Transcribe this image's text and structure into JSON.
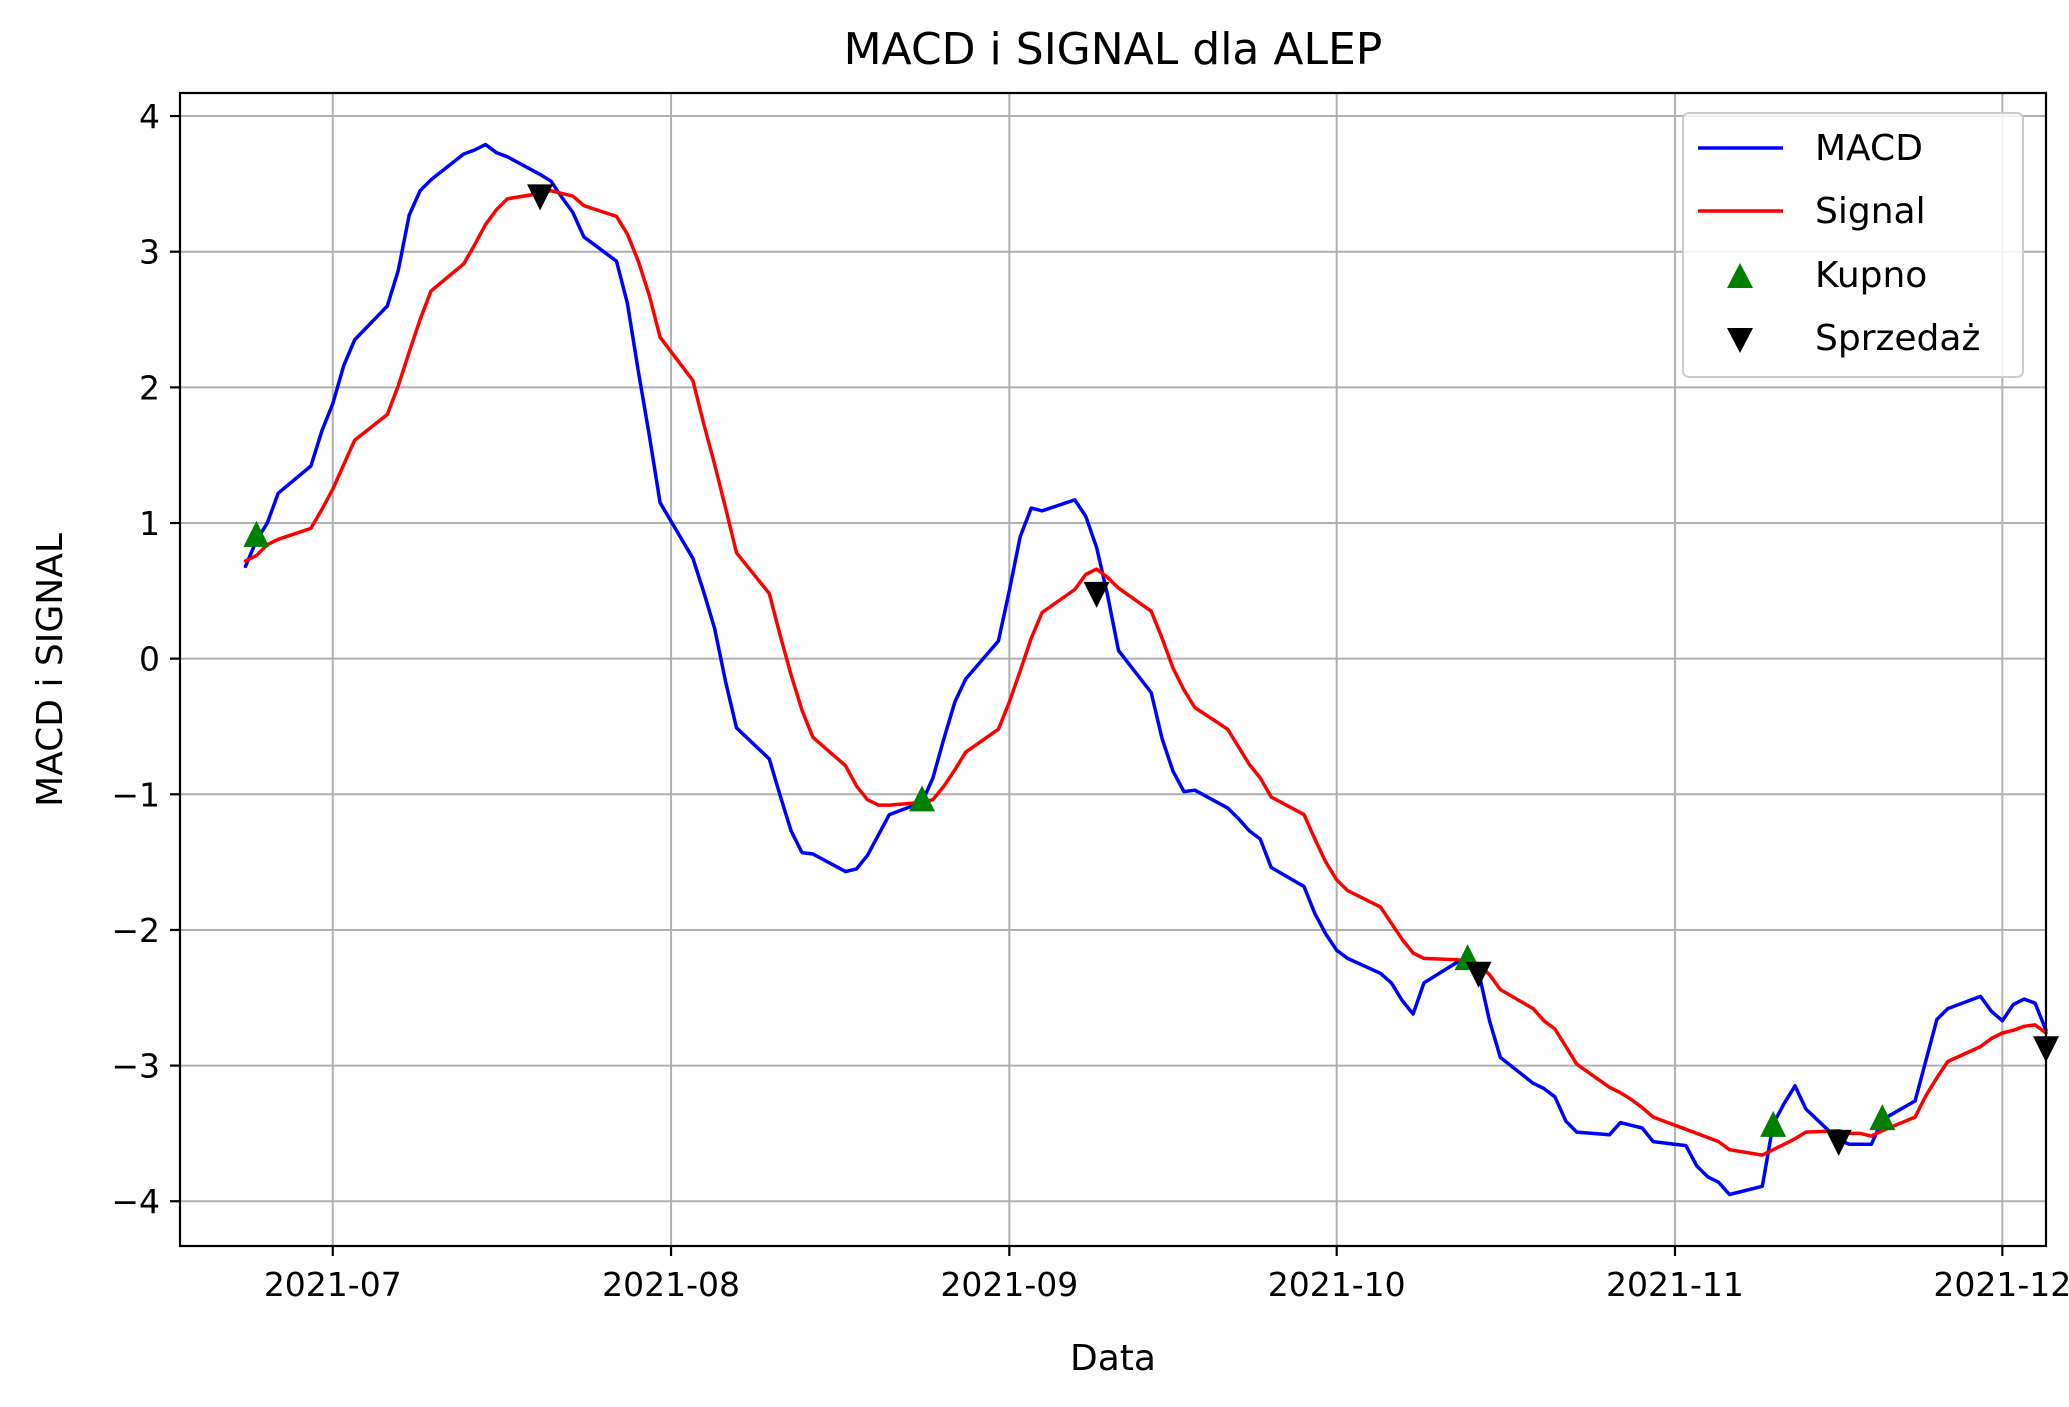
{
  "chart_data": {
    "type": "line",
    "title": "MACD i SIGNAL dla ALEP",
    "xlabel": "Data",
    "ylabel": "MACD i SIGNAL",
    "x_ticks": [
      "2021-07",
      "2021-08",
      "2021-09",
      "2021-10",
      "2021-11",
      "2021-12"
    ],
    "y_ticks": [
      "4",
      "3",
      "2",
      "1",
      "0",
      "−1",
      "−2",
      "−3",
      "−4"
    ],
    "ylim": [
      -4.33,
      4.17
    ],
    "xlim": [
      "2021-06-17",
      "2021-12-05"
    ],
    "grid": true,
    "legend_position": "top-right",
    "colors": {
      "macd": "#0000ff",
      "signal": "#ff0000",
      "buy": "#008000",
      "sell": "#000000"
    },
    "series": [
      {
        "name": "MACD",
        "style": "line",
        "color": "#0000ff",
        "points": [
          [
            "2021-06-23",
            0.68
          ],
          [
            "2021-06-24",
            0.87
          ],
          [
            "2021-06-25",
            1.0
          ],
          [
            "2021-06-26",
            1.22
          ],
          [
            "2021-06-29",
            1.42
          ],
          [
            "2021-06-30",
            1.68
          ],
          [
            "2021-07-01",
            1.88
          ],
          [
            "2021-07-02",
            2.16
          ],
          [
            "2021-07-03",
            2.35
          ],
          [
            "2021-07-06",
            2.6
          ],
          [
            "2021-07-07",
            2.86
          ],
          [
            "2021-07-08",
            3.27
          ],
          [
            "2021-07-09",
            3.45
          ],
          [
            "2021-07-10",
            3.53
          ],
          [
            "2021-07-13",
            3.72
          ],
          [
            "2021-07-14",
            3.75
          ],
          [
            "2021-07-15",
            3.79
          ],
          [
            "2021-07-16",
            3.73
          ],
          [
            "2021-07-17",
            3.7
          ],
          [
            "2021-07-20",
            3.57
          ],
          [
            "2021-07-21",
            3.52
          ],
          [
            "2021-07-22",
            3.4
          ],
          [
            "2021-07-23",
            3.29
          ],
          [
            "2021-07-24",
            3.11
          ],
          [
            "2021-07-27",
            2.93
          ],
          [
            "2021-07-28",
            2.62
          ],
          [
            "2021-07-29",
            2.12
          ],
          [
            "2021-07-30",
            1.65
          ],
          [
            "2021-07-31",
            1.15
          ],
          [
            "2021-08-03",
            0.74
          ],
          [
            "2021-08-04",
            0.49
          ],
          [
            "2021-08-05",
            0.22
          ],
          [
            "2021-08-06",
            -0.17
          ],
          [
            "2021-08-07",
            -0.51
          ],
          [
            "2021-08-10",
            -0.74
          ],
          [
            "2021-08-11",
            -1.01
          ],
          [
            "2021-08-12",
            -1.27
          ],
          [
            "2021-08-13",
            -1.43
          ],
          [
            "2021-08-14",
            -1.44
          ],
          [
            "2021-08-17",
            -1.57
          ],
          [
            "2021-08-18",
            -1.55
          ],
          [
            "2021-08-19",
            -1.45
          ],
          [
            "2021-08-20",
            -1.3
          ],
          [
            "2021-08-21",
            -1.15
          ],
          [
            "2021-08-24",
            -1.06
          ],
          [
            "2021-08-25",
            -0.88
          ],
          [
            "2021-08-26",
            -0.59
          ],
          [
            "2021-08-27",
            -0.32
          ],
          [
            "2021-08-28",
            -0.15
          ],
          [
            "2021-08-31",
            0.13
          ],
          [
            "2021-09-01",
            0.5
          ],
          [
            "2021-09-02",
            0.9
          ],
          [
            "2021-09-03",
            1.11
          ],
          [
            "2021-09-04",
            1.09
          ],
          [
            "2021-09-07",
            1.17
          ],
          [
            "2021-09-08",
            1.05
          ],
          [
            "2021-09-09",
            0.82
          ],
          [
            "2021-09-10",
            0.47
          ],
          [
            "2021-09-11",
            0.06
          ],
          [
            "2021-09-14",
            -0.25
          ],
          [
            "2021-09-15",
            -0.59
          ],
          [
            "2021-09-16",
            -0.83
          ],
          [
            "2021-09-17",
            -0.98
          ],
          [
            "2021-09-18",
            -0.97
          ],
          [
            "2021-09-21",
            -1.1
          ],
          [
            "2021-09-22",
            -1.18
          ],
          [
            "2021-09-23",
            -1.27
          ],
          [
            "2021-09-24",
            -1.33
          ],
          [
            "2021-09-25",
            -1.54
          ],
          [
            "2021-09-28",
            -1.68
          ],
          [
            "2021-09-29",
            -1.88
          ],
          [
            "2021-09-30",
            -2.03
          ],
          [
            "2021-10-01",
            -2.15
          ],
          [
            "2021-10-02",
            -2.21
          ],
          [
            "2021-10-05",
            -2.32
          ],
          [
            "2021-10-06",
            -2.39
          ],
          [
            "2021-10-07",
            -2.52
          ],
          [
            "2021-10-08",
            -2.62
          ],
          [
            "2021-10-09",
            -2.39
          ],
          [
            "2021-10-12",
            -2.24
          ],
          [
            "2021-10-13",
            -2.21
          ],
          [
            "2021-10-14",
            -2.31
          ],
          [
            "2021-10-15",
            -2.67
          ],
          [
            "2021-10-16",
            -2.94
          ],
          [
            "2021-10-19",
            -3.13
          ],
          [
            "2021-10-20",
            -3.17
          ],
          [
            "2021-10-21",
            -3.23
          ],
          [
            "2021-10-22",
            -3.41
          ],
          [
            "2021-10-23",
            -3.49
          ],
          [
            "2021-10-26",
            -3.51
          ],
          [
            "2021-10-27",
            -3.42
          ],
          [
            "2021-10-28",
            -3.44
          ],
          [
            "2021-10-29",
            -3.46
          ],
          [
            "2021-10-30",
            -3.56
          ],
          [
            "2021-11-02",
            -3.59
          ],
          [
            "2021-11-03",
            -3.74
          ],
          [
            "2021-11-04",
            -3.82
          ],
          [
            "2021-11-05",
            -3.86
          ],
          [
            "2021-11-06",
            -3.95
          ],
          [
            "2021-11-09",
            -3.89
          ],
          [
            "2021-11-10",
            -3.43
          ],
          [
            "2021-11-11",
            -3.28
          ],
          [
            "2021-11-12",
            -3.15
          ],
          [
            "2021-11-13",
            -3.32
          ],
          [
            "2021-11-16",
            -3.55
          ],
          [
            "2021-11-17",
            -3.58
          ],
          [
            "2021-11-18",
            -3.58
          ],
          [
            "2021-11-19",
            -3.58
          ],
          [
            "2021-11-20",
            -3.4
          ],
          [
            "2021-11-23",
            -3.26
          ],
          [
            "2021-11-24",
            -2.96
          ],
          [
            "2021-11-25",
            -2.66
          ],
          [
            "2021-11-26",
            -2.58
          ],
          [
            "2021-11-29",
            -2.49
          ],
          [
            "2021-11-30",
            -2.6
          ],
          [
            "2021-12-01",
            -2.67
          ],
          [
            "2021-12-02",
            -2.55
          ],
          [
            "2021-12-03",
            -2.51
          ],
          [
            "2021-12-04",
            -2.54
          ],
          [
            "2021-12-05",
            -2.74
          ]
        ]
      },
      {
        "name": "Signal",
        "style": "line",
        "color": "#ff0000",
        "points": [
          [
            "2021-06-23",
            0.72
          ],
          [
            "2021-06-24",
            0.76
          ],
          [
            "2021-06-25",
            0.84
          ],
          [
            "2021-06-26",
            0.88
          ],
          [
            "2021-06-29",
            0.96
          ],
          [
            "2021-06-30",
            1.1
          ],
          [
            "2021-07-01",
            1.25
          ],
          [
            "2021-07-02",
            1.43
          ],
          [
            "2021-07-03",
            1.61
          ],
          [
            "2021-07-06",
            1.8
          ],
          [
            "2021-07-07",
            2.01
          ],
          [
            "2021-07-08",
            2.26
          ],
          [
            "2021-07-09",
            2.5
          ],
          [
            "2021-07-10",
            2.71
          ],
          [
            "2021-07-13",
            2.91
          ],
          [
            "2021-07-14",
            3.05
          ],
          [
            "2021-07-15",
            3.2
          ],
          [
            "2021-07-16",
            3.31
          ],
          [
            "2021-07-17",
            3.39
          ],
          [
            "2021-07-20",
            3.43
          ],
          [
            "2021-07-21",
            3.45
          ],
          [
            "2021-07-22",
            3.43
          ],
          [
            "2021-07-23",
            3.41
          ],
          [
            "2021-07-24",
            3.34
          ],
          [
            "2021-07-27",
            3.26
          ],
          [
            "2021-07-28",
            3.13
          ],
          [
            "2021-07-29",
            2.93
          ],
          [
            "2021-07-30",
            2.68
          ],
          [
            "2021-07-31",
            2.37
          ],
          [
            "2021-08-03",
            2.05
          ],
          [
            "2021-08-04",
            1.73
          ],
          [
            "2021-08-05",
            1.43
          ],
          [
            "2021-08-06",
            1.11
          ],
          [
            "2021-08-07",
            0.78
          ],
          [
            "2021-08-10",
            0.48
          ],
          [
            "2021-08-11",
            0.17
          ],
          [
            "2021-08-12",
            -0.12
          ],
          [
            "2021-08-13",
            -0.38
          ],
          [
            "2021-08-14",
            -0.58
          ],
          [
            "2021-08-17",
            -0.79
          ],
          [
            "2021-08-18",
            -0.94
          ],
          [
            "2021-08-19",
            -1.04
          ],
          [
            "2021-08-20",
            -1.08
          ],
          [
            "2021-08-21",
            -1.08
          ],
          [
            "2021-08-24",
            -1.06
          ],
          [
            "2021-08-25",
            -1.04
          ],
          [
            "2021-08-26",
            -0.94
          ],
          [
            "2021-08-27",
            -0.82
          ],
          [
            "2021-08-28",
            -0.69
          ],
          [
            "2021-08-31",
            -0.52
          ],
          [
            "2021-09-01",
            -0.32
          ],
          [
            "2021-09-02",
            -0.09
          ],
          [
            "2021-09-03",
            0.15
          ],
          [
            "2021-09-04",
            0.34
          ],
          [
            "2021-09-07",
            0.51
          ],
          [
            "2021-09-08",
            0.62
          ],
          [
            "2021-09-09",
            0.66
          ],
          [
            "2021-09-10",
            0.6
          ],
          [
            "2021-09-11",
            0.52
          ],
          [
            "2021-09-14",
            0.35
          ],
          [
            "2021-09-15",
            0.15
          ],
          [
            "2021-09-16",
            -0.07
          ],
          [
            "2021-09-17",
            -0.23
          ],
          [
            "2021-09-18",
            -0.36
          ],
          [
            "2021-09-21",
            -0.52
          ],
          [
            "2021-09-22",
            -0.65
          ],
          [
            "2021-09-23",
            -0.78
          ],
          [
            "2021-09-24",
            -0.88
          ],
          [
            "2021-09-25",
            -1.02
          ],
          [
            "2021-09-28",
            -1.15
          ],
          [
            "2021-09-29",
            -1.33
          ],
          [
            "2021-09-30",
            -1.5
          ],
          [
            "2021-10-01",
            -1.63
          ],
          [
            "2021-10-02",
            -1.71
          ],
          [
            "2021-10-05",
            -1.83
          ],
          [
            "2021-10-06",
            -1.95
          ],
          [
            "2021-10-07",
            -2.07
          ],
          [
            "2021-10-08",
            -2.17
          ],
          [
            "2021-10-09",
            -2.21
          ],
          [
            "2021-10-12",
            -2.22
          ],
          [
            "2021-10-13",
            -2.23
          ],
          [
            "2021-10-14",
            -2.25
          ],
          [
            "2021-10-15",
            -2.33
          ],
          [
            "2021-10-16",
            -2.44
          ],
          [
            "2021-10-19",
            -2.58
          ],
          [
            "2021-10-20",
            -2.67
          ],
          [
            "2021-10-21",
            -2.73
          ],
          [
            "2021-10-22",
            -2.86
          ],
          [
            "2021-10-23",
            -2.99
          ],
          [
            "2021-10-26",
            -3.16
          ],
          [
            "2021-10-27",
            -3.2
          ],
          [
            "2021-10-28",
            -3.25
          ],
          [
            "2021-10-29",
            -3.31
          ],
          [
            "2021-10-30",
            -3.38
          ],
          [
            "2021-11-02",
            -3.47
          ],
          [
            "2021-11-03",
            -3.5
          ],
          [
            "2021-11-04",
            -3.53
          ],
          [
            "2021-11-05",
            -3.56
          ],
          [
            "2021-11-06",
            -3.62
          ],
          [
            "2021-11-09",
            -3.66
          ],
          [
            "2021-11-10",
            -3.62
          ],
          [
            "2021-11-11",
            -3.58
          ],
          [
            "2021-11-12",
            -3.54
          ],
          [
            "2021-11-13",
            -3.49
          ],
          [
            "2021-11-16",
            -3.48
          ],
          [
            "2021-11-17",
            -3.5
          ],
          [
            "2021-11-18",
            -3.5
          ],
          [
            "2021-11-19",
            -3.52
          ],
          [
            "2021-11-20",
            -3.48
          ],
          [
            "2021-11-23",
            -3.38
          ],
          [
            "2021-11-24",
            -3.22
          ],
          [
            "2021-11-25",
            -3.09
          ],
          [
            "2021-11-26",
            -2.97
          ],
          [
            "2021-11-29",
            -2.86
          ],
          [
            "2021-11-30",
            -2.8
          ],
          [
            "2021-12-01",
            -2.76
          ],
          [
            "2021-12-02",
            -2.74
          ],
          [
            "2021-12-03",
            -2.71
          ],
          [
            "2021-12-04",
            -2.7
          ],
          [
            "2021-12-05",
            -2.76
          ]
        ]
      },
      {
        "name": "Kupno",
        "style": "marker-up",
        "color": "#008000",
        "points": [
          [
            "2021-06-24",
            0.92
          ],
          [
            "2021-08-24",
            -1.03
          ],
          [
            "2021-10-13",
            -2.2
          ],
          [
            "2021-11-10",
            -3.43
          ],
          [
            "2021-11-20",
            -3.38
          ]
        ]
      },
      {
        "name": "Sprzedaż",
        "style": "marker-down",
        "color": "#000000",
        "points": [
          [
            "2021-07-20",
            3.4
          ],
          [
            "2021-09-09",
            0.47
          ],
          [
            "2021-10-14",
            -2.33
          ],
          [
            "2021-11-16",
            -3.57
          ],
          [
            "2021-12-05",
            -2.88
          ]
        ]
      }
    ]
  }
}
